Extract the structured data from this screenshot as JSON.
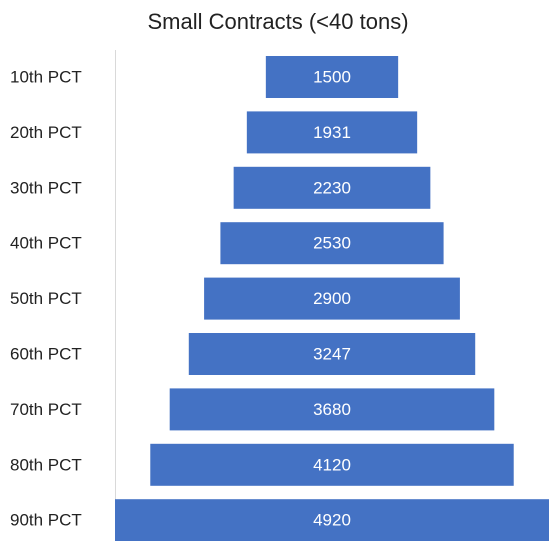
{
  "chart_data": {
    "type": "funnel",
    "title": "Small Contracts (<40 tons)",
    "categories": [
      "10th PCT",
      "20th PCT",
      "30th PCT",
      "40th PCT",
      "50th PCT",
      "60th PCT",
      "70th PCT",
      "80th PCT",
      "90th PCT"
    ],
    "values": [
      1500,
      1931,
      2230,
      2530,
      2900,
      3247,
      3680,
      4120,
      4920
    ],
    "color": "#4472c4"
  }
}
